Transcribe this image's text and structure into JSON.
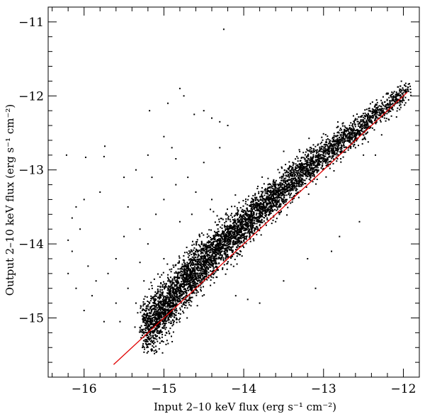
{
  "chart_data": {
    "type": "scatter",
    "title": "",
    "xlabel": "Input 2–10 keV flux (erg s⁻¹ cm⁻²)",
    "ylabel": "Output 2–10 keV flux (erg s⁻¹ cm⁻²)",
    "xlim": [
      -16.45,
      -11.8
    ],
    "ylim": [
      -15.8,
      -10.8
    ],
    "x_ticks": [
      "−16",
      "−15",
      "−14",
      "−13",
      "−12"
    ],
    "y_ticks": [
      "−15",
      "−14",
      "−13",
      "−12",
      "−11"
    ],
    "x_tick_values": [
      -16,
      -15,
      -14,
      -13,
      -12
    ],
    "y_tick_values": [
      -15,
      -14,
      -13,
      -12,
      -11
    ],
    "grid": false,
    "series": [
      {
        "marker_color": "#000000",
        "main_cloud": [
          [
            -15.2,
            -15.1
          ],
          [
            -15.1,
            -15.0
          ],
          [
            -15.0,
            -14.9
          ],
          [
            -14.9,
            -14.75
          ],
          [
            -14.8,
            -14.6
          ],
          [
            -14.7,
            -14.5
          ],
          [
            -14.6,
            -14.35
          ],
          [
            -14.5,
            -14.25
          ],
          [
            -14.4,
            -14.15
          ],
          [
            -14.3,
            -14.0
          ],
          [
            -14.2,
            -13.95
          ],
          [
            -14.1,
            -13.85
          ],
          [
            -14.0,
            -13.75
          ],
          [
            -13.9,
            -13.65
          ],
          [
            -13.8,
            -13.55
          ],
          [
            -13.7,
            -13.45
          ],
          [
            -13.6,
            -13.35
          ],
          [
            -13.5,
            -13.25
          ],
          [
            -13.4,
            -13.15
          ],
          [
            -13.3,
            -13.05
          ],
          [
            -13.2,
            -12.95
          ],
          [
            -13.1,
            -12.88
          ],
          [
            -13.0,
            -12.8
          ],
          [
            -12.9,
            -12.72
          ],
          [
            -12.8,
            -12.65
          ],
          [
            -12.7,
            -12.55
          ],
          [
            -12.6,
            -12.48
          ],
          [
            -12.5,
            -12.4
          ],
          [
            -12.4,
            -12.3
          ],
          [
            -12.3,
            -12.22
          ],
          [
            -12.2,
            -12.15
          ],
          [
            -12.1,
            -12.05
          ],
          [
            -12.0,
            -11.95
          ]
        ],
        "outliers": [
          [
            -16.22,
            -12.8
          ],
          [
            -15.98,
            -12.83
          ],
          [
            -15.75,
            -12.82
          ],
          [
            -15.74,
            -12.68
          ],
          [
            -15.18,
            -12.2
          ],
          [
            -14.8,
            -11.9
          ],
          [
            -14.75,
            -12.0
          ],
          [
            -14.95,
            -12.1
          ],
          [
            -14.62,
            -12.25
          ],
          [
            -14.5,
            -12.2
          ],
          [
            -14.4,
            -12.3
          ],
          [
            -14.3,
            -12.35
          ],
          [
            -14.2,
            -12.4
          ],
          [
            -14.25,
            -11.1
          ],
          [
            -15.0,
            -12.55
          ],
          [
            -14.9,
            -12.7
          ],
          [
            -14.85,
            -12.85
          ],
          [
            -15.2,
            -12.8
          ],
          [
            -15.35,
            -13.0
          ],
          [
            -15.5,
            -13.1
          ],
          [
            -15.8,
            -13.3
          ],
          [
            -16.0,
            -13.4
          ],
          [
            -16.1,
            -13.5
          ],
          [
            -16.15,
            -13.65
          ],
          [
            -16.05,
            -13.8
          ],
          [
            -16.2,
            -13.95
          ],
          [
            -16.15,
            -14.1
          ],
          [
            -16.2,
            -14.4
          ],
          [
            -16.1,
            -14.6
          ],
          [
            -15.95,
            -14.3
          ],
          [
            -15.85,
            -14.5
          ],
          [
            -15.9,
            -14.7
          ],
          [
            -16.0,
            -14.9
          ],
          [
            -15.75,
            -15.05
          ],
          [
            -15.7,
            -14.4
          ],
          [
            -15.6,
            -14.2
          ],
          [
            -15.5,
            -13.9
          ],
          [
            -15.45,
            -14.6
          ],
          [
            -15.6,
            -14.8
          ],
          [
            -15.55,
            -15.05
          ],
          [
            -15.45,
            -13.5
          ],
          [
            -15.3,
            -13.8
          ],
          [
            -15.2,
            -14.0
          ],
          [
            -15.3,
            -14.25
          ],
          [
            -15.25,
            -14.5
          ],
          [
            -15.1,
            -13.6
          ],
          [
            -15.0,
            -13.4
          ],
          [
            -14.85,
            -13.2
          ],
          [
            -14.7,
            -13.1
          ],
          [
            -14.6,
            -13.3
          ],
          [
            -14.5,
            -12.9
          ],
          [
            -14.4,
            -13.4
          ],
          [
            -14.3,
            -12.7
          ],
          [
            -14.8,
            -13.7
          ],
          [
            -15.0,
            -14.2
          ],
          [
            -14.65,
            -13.6
          ],
          [
            -14.55,
            -13.9
          ],
          [
            -15.15,
            -13.1
          ],
          [
            -15.35,
            -14.8
          ],
          [
            -13.6,
            -13.7
          ],
          [
            -13.2,
            -14.2
          ],
          [
            -12.9,
            -14.1
          ],
          [
            -12.8,
            -13.9
          ],
          [
            -12.55,
            -13.7
          ],
          [
            -12.5,
            -12.8
          ],
          [
            -13.1,
            -14.6
          ],
          [
            -13.8,
            -14.8
          ],
          [
            -13.5,
            -14.5
          ],
          [
            -12.35,
            -12.8
          ],
          [
            -14.1,
            -14.7
          ],
          [
            -13.95,
            -14.75
          ],
          [
            -12.7,
            -12.6
          ],
          [
            -12.6,
            -12.7
          ]
        ]
      }
    ],
    "fit_line": {
      "color": "#e00000",
      "from": [
        -15.63,
        -15.63
      ],
      "to": [
        -11.95,
        -11.95
      ]
    }
  }
}
